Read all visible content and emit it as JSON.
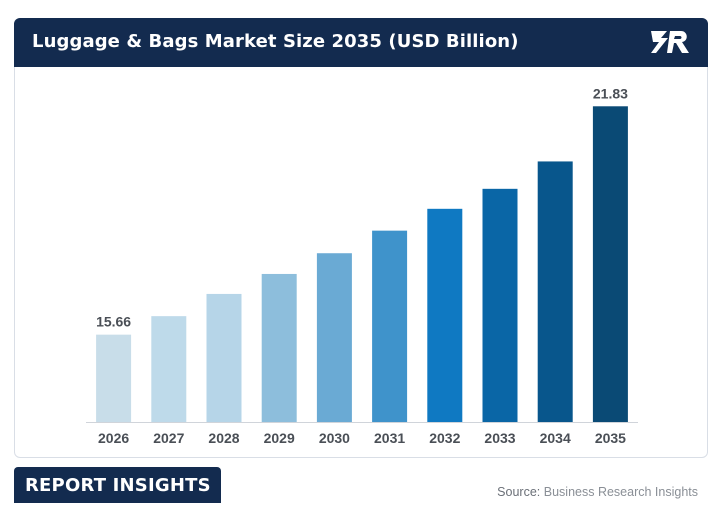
{
  "header": {
    "title": "Luggage & Bags Market Size 2035 (USD Billion)",
    "logo_icon": "business-research-insights-logo"
  },
  "chart_data": {
    "type": "bar",
    "categories": [
      "2026",
      "2027",
      "2028",
      "2029",
      "2030",
      "2031",
      "2032",
      "2033",
      "2034",
      "2035"
    ],
    "values": [
      15.66,
      16.16,
      16.76,
      17.3,
      17.86,
      18.47,
      19.06,
      19.6,
      20.34,
      21.83
    ],
    "data_labels": [
      {
        "category": "2026",
        "text": "15.66"
      },
      {
        "category": "2035",
        "text": "21.83"
      }
    ],
    "ylim": [
      13.3,
      22.0
    ],
    "grid": false,
    "colors": [
      "#c8dde9",
      "#bedaea",
      "#b6d5e8",
      "#8dbedc",
      "#6aaad4",
      "#3f93cb",
      "#0f79c2",
      "#0a66a6",
      "#08568c",
      "#0a4a75"
    ]
  },
  "footer": {
    "badge": "REPORT INSIGHTS",
    "source_label": "Source:",
    "source_value": "Business Research Insights"
  }
}
